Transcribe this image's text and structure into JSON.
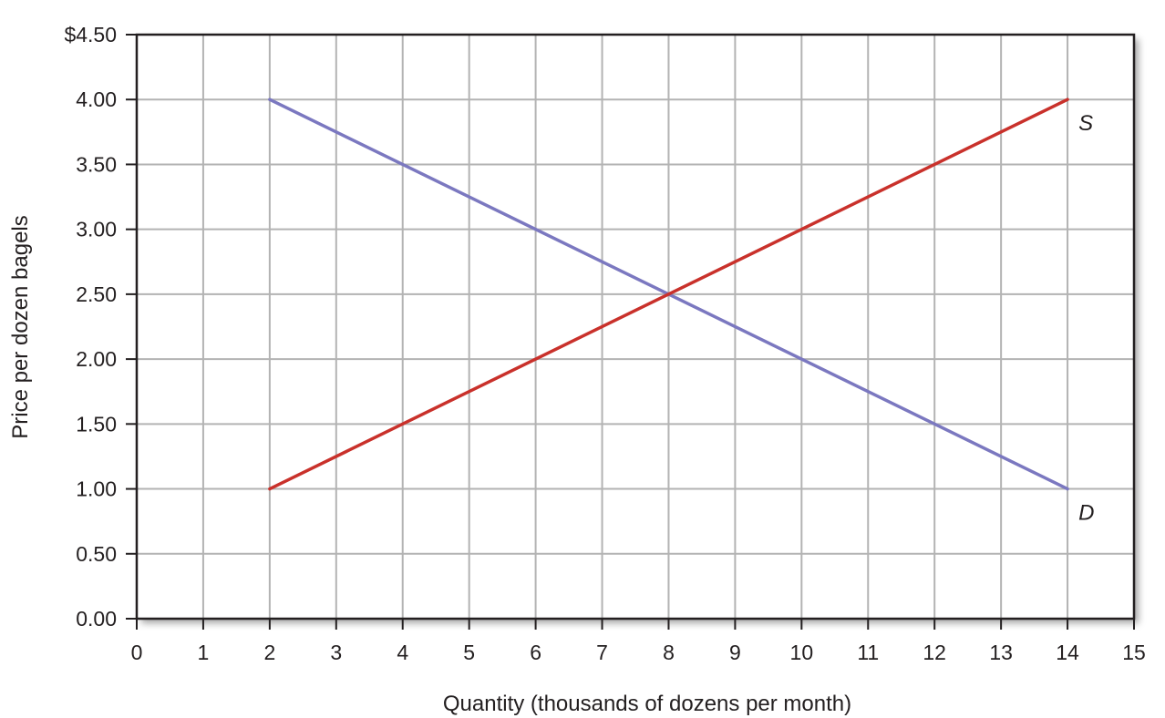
{
  "chart_data": {
    "type": "line",
    "xlabel": "Quantity (thousands of dozens per month)",
    "ylabel": "Price per dozen bagels",
    "xlim": [
      0,
      15
    ],
    "ylim": [
      0,
      4.5
    ],
    "x_ticks": [
      "0",
      "1",
      "2",
      "3",
      "4",
      "5",
      "6",
      "7",
      "8",
      "9",
      "10",
      "11",
      "12",
      "13",
      "14",
      "15"
    ],
    "y_ticks": [
      "0.00",
      "0.50",
      "1.00",
      "1.50",
      "2.00",
      "2.50",
      "3.00",
      "3.50",
      "4.00",
      "$4.50"
    ],
    "grid": true,
    "series": [
      {
        "name": "D",
        "color": "#7b78c0",
        "points": [
          [
            2,
            4.0
          ],
          [
            14,
            1.0
          ]
        ]
      },
      {
        "name": "S",
        "color": "#c9312b",
        "points": [
          [
            2,
            1.0
          ],
          [
            14,
            4.0
          ]
        ]
      }
    ]
  }
}
